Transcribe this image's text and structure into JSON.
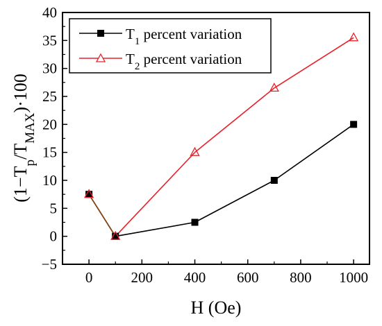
{
  "chart_data": {
    "type": "line",
    "title": "",
    "xlabel": "H (Oe)",
    "ylabel": {
      "prefix": "(1−T",
      "sub1": "p",
      "mid": "/T",
      "sub2": "MAX",
      "suffix": ")·100"
    },
    "xlim": [
      -100,
      1060
    ],
    "ylim": [
      -5,
      40
    ],
    "xticks": [
      0,
      200,
      400,
      600,
      800,
      1000
    ],
    "xtick_labels": [
      "0",
      "200",
      "400",
      "600",
      "800",
      "1000"
    ],
    "yticks": [
      -5,
      0,
      5,
      10,
      15,
      20,
      25,
      30,
      35,
      40
    ],
    "ytick_labels": [
      "−5",
      "0",
      "5",
      "10",
      "15",
      "20",
      "25",
      "30",
      "35",
      "40"
    ],
    "legend_position": "top-left",
    "grid": false,
    "series": [
      {
        "name_main": "T",
        "name_sub": "1",
        "name_rest": " percent variation",
        "color": "#000000",
        "marker": "filled-square",
        "x": [
          0,
          100,
          400,
          700,
          1000
        ],
        "y": [
          7.5,
          0,
          2.5,
          10,
          20
        ]
      },
      {
        "name_main": "T",
        "name_sub": "2",
        "name_rest": " percent variation",
        "color": "#e8202a",
        "marker": "open-triangle",
        "x": [
          0,
          100,
          400,
          700,
          1000
        ],
        "y": [
          7.5,
          0,
          15,
          26.5,
          35.5
        ]
      }
    ],
    "overlap_segment_color": "#8b4513"
  }
}
